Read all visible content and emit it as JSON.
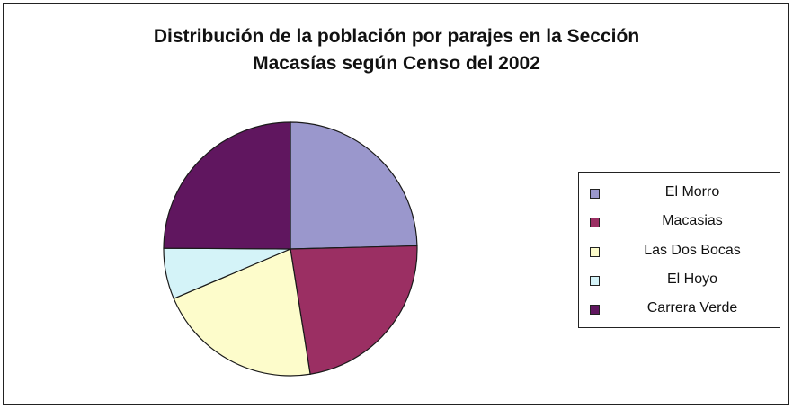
{
  "chart_data": {
    "type": "pie",
    "title": [
      "Distribución de la población por parajes en la Sección",
      "Macasías según Censo del 2002"
    ],
    "categories": [
      "El Morro",
      "Macasias",
      "Las Dos Bocas",
      "El Hoyo",
      "Carrera Verde"
    ],
    "values": [
      24.6,
      22.9,
      21.1,
      6.5,
      24.9
    ],
    "colors": [
      "#9a97cc",
      "#9b2f63",
      "#fdfccb",
      "#d4f3f8",
      "#60165f"
    ],
    "legend_position": "right",
    "start_angle": "top",
    "direction": "clockwise"
  }
}
